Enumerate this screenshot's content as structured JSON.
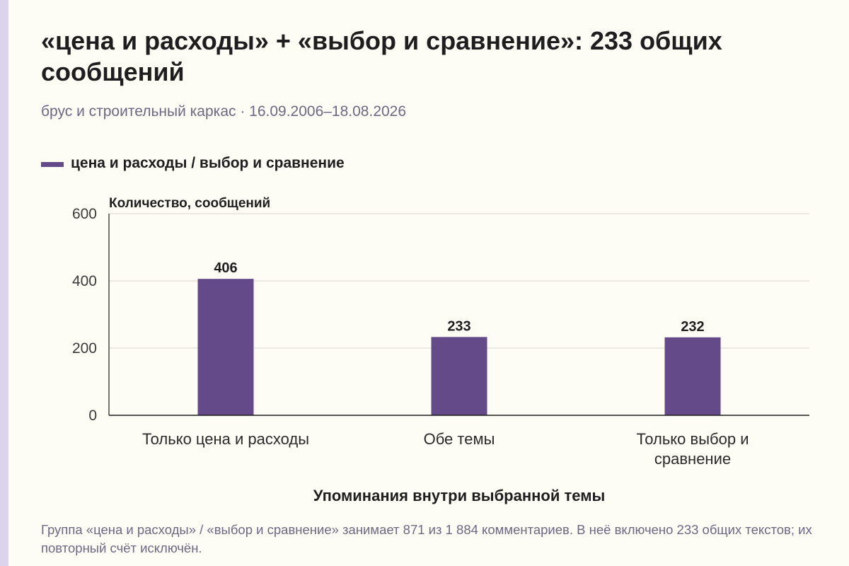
{
  "title": "«цена и расходы» + «выбор и сравнение»: 233 общих сообщений",
  "subtitle": "брус и строительный каркас · 16.09.2006–18.08.2026",
  "footnote": "Группа «цена и расходы» / «выбор и сравнение» занимает 871 из 1 884 комментариев. В неё включено 233 общих текстов; их повторный счёт исключён.",
  "colors": {
    "bar": "#654a8a",
    "grid": "#d9d6cc",
    "axis": "#1e1e1e"
  },
  "chart_data": {
    "type": "bar",
    "categories": [
      [
        "Только цена и расходы"
      ],
      [
        "Обе темы"
      ],
      [
        "Только выбор и",
        "сравнение"
      ]
    ],
    "series": [
      {
        "name": "цена и расходы / выбор и сравнение",
        "values": [
          406,
          233,
          232
        ]
      }
    ],
    "data_labels": [
      "406",
      "233",
      "232"
    ],
    "ylabel": "Количество, сообщений",
    "xlabel": "Упоминания внутри выбранной темы",
    "ylim": [
      0,
      600
    ],
    "yticks": [
      0,
      200,
      400,
      600
    ],
    "grid": true,
    "legend_position": "top-left"
  }
}
